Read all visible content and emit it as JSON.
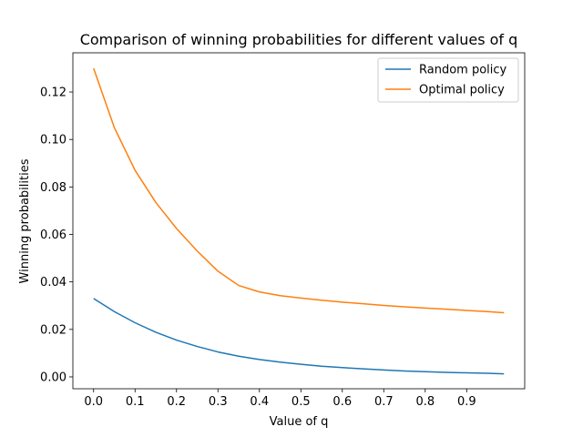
{
  "chart_data": {
    "type": "line",
    "title": "Comparison of winning probabilities for different values of q",
    "xlabel": "Value of q",
    "ylabel": "Winning probabilities",
    "xlim": [
      -0.05,
      1.04
    ],
    "ylim": [
      -0.005,
      0.1365
    ],
    "xticks": [
      "0.0",
      "0.1",
      "0.2",
      "0.3",
      "0.4",
      "0.5",
      "0.6",
      "0.7",
      "0.8",
      "0.9"
    ],
    "yticks": [
      "0.00",
      "0.02",
      "0.04",
      "0.06",
      "0.08",
      "0.10",
      "0.12"
    ],
    "grid": false,
    "legend_position": "top-right",
    "x": [
      0.0,
      0.05,
      0.1,
      0.15,
      0.2,
      0.25,
      0.3,
      0.35,
      0.4,
      0.45,
      0.5,
      0.55,
      0.6,
      0.65,
      0.7,
      0.75,
      0.8,
      0.85,
      0.9,
      0.95,
      0.99
    ],
    "series": [
      {
        "name": "Random policy",
        "color": "#1f77b4",
        "values": [
          0.033,
          0.0275,
          0.0228,
          0.0188,
          0.0155,
          0.0128,
          0.0105,
          0.0087,
          0.0073,
          0.0062,
          0.0053,
          0.0045,
          0.0039,
          0.0034,
          0.0029,
          0.0025,
          0.0022,
          0.0019,
          0.0017,
          0.0015,
          0.0013
        ]
      },
      {
        "name": "Optimal policy",
        "color": "#ff7f0e",
        "values": [
          0.13,
          0.105,
          0.087,
          0.0735,
          0.0625,
          0.053,
          0.0445,
          0.0385,
          0.0358,
          0.0342,
          0.0332,
          0.0323,
          0.0315,
          0.0308,
          0.0301,
          0.0295,
          0.029,
          0.0285,
          0.028,
          0.0275,
          0.027
        ]
      }
    ]
  }
}
